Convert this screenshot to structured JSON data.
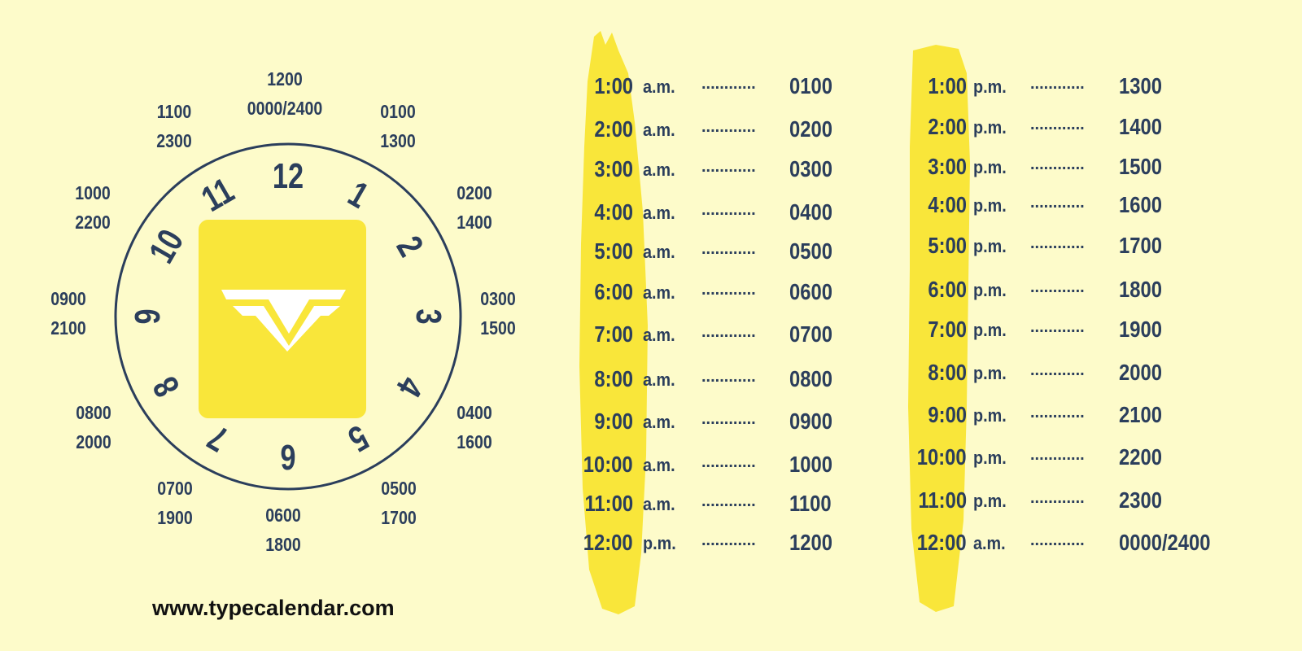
{
  "colors": {
    "background": "#fdfbca",
    "text": "#2b3e5c",
    "accent_yellow": "#f9e63a",
    "logo_white": "#ffffff"
  },
  "clock": {
    "numerals": [
      "12",
      "1",
      "2",
      "3",
      "4",
      "5",
      "6",
      "7",
      "8",
      "9",
      "10",
      "11"
    ],
    "outer_labels": [
      [
        "1200",
        "0000/2400"
      ],
      [
        "0100",
        "1300"
      ],
      [
        "0200",
        "1400"
      ],
      [
        "0300",
        "1500"
      ],
      [
        "0400",
        "1600"
      ],
      [
        "0500",
        "1700"
      ],
      [
        "0600",
        "1800"
      ],
      [
        "0700",
        "1900"
      ],
      [
        "0800",
        "2000"
      ],
      [
        "0900",
        "2100"
      ],
      [
        "1000",
        "2200"
      ],
      [
        "1100",
        "2300"
      ]
    ],
    "center_logo": "typecalendar-logo"
  },
  "am_table": [
    {
      "time": "1:00",
      "meridiem": "a.m.",
      "dots": "............",
      "military": "0100"
    },
    {
      "time": "2:00",
      "meridiem": "a.m.",
      "dots": "............",
      "military": "0200"
    },
    {
      "time": "3:00",
      "meridiem": "a.m.",
      "dots": "............",
      "military": "0300"
    },
    {
      "time": "4:00",
      "meridiem": "a.m.",
      "dots": "............",
      "military": "0400"
    },
    {
      "time": "5:00",
      "meridiem": "a.m.",
      "dots": "............",
      "military": "0500"
    },
    {
      "time": "6:00",
      "meridiem": "a.m.",
      "dots": "............",
      "military": "0600"
    },
    {
      "time": "7:00",
      "meridiem": "a.m.",
      "dots": "............",
      "military": "0700"
    },
    {
      "time": "8:00",
      "meridiem": "a.m.",
      "dots": "............",
      "military": "0800"
    },
    {
      "time": "9:00",
      "meridiem": "a.m.",
      "dots": "............",
      "military": "0900"
    },
    {
      "time": "10:00",
      "meridiem": "a.m.",
      "dots": "............",
      "military": "1000"
    },
    {
      "time": "11:00",
      "meridiem": "a.m.",
      "dots": "............",
      "military": "1100"
    },
    {
      "time": "12:00",
      "meridiem": "p.m.",
      "dots": "............",
      "military": "1200"
    }
  ],
  "pm_table": [
    {
      "time": "1:00",
      "meridiem": "p.m.",
      "dots": "............",
      "military": "1300"
    },
    {
      "time": "2:00",
      "meridiem": "p.m.",
      "dots": "............",
      "military": "1400"
    },
    {
      "time": "3:00",
      "meridiem": "p.m.",
      "dots": "............",
      "military": "1500"
    },
    {
      "time": "4:00",
      "meridiem": "p.m.",
      "dots": "............",
      "military": "1600"
    },
    {
      "time": "5:00",
      "meridiem": "p.m.",
      "dots": "............",
      "military": "1700"
    },
    {
      "time": "6:00",
      "meridiem": "p.m.",
      "dots": "............",
      "military": "1800"
    },
    {
      "time": "7:00",
      "meridiem": "p.m.",
      "dots": "............",
      "military": "1900"
    },
    {
      "time": "8:00",
      "meridiem": "p.m.",
      "dots": "............",
      "military": "2000"
    },
    {
      "time": "9:00",
      "meridiem": "p.m.",
      "dots": "............",
      "military": "2100"
    },
    {
      "time": "10:00",
      "meridiem": "p.m.",
      "dots": "............",
      "military": "2200"
    },
    {
      "time": "11:00",
      "meridiem": "p.m.",
      "dots": "............",
      "military": "2300"
    },
    {
      "time": "12:00",
      "meridiem": "a.m.",
      "dots": "............",
      "military": "0000/2400"
    }
  ],
  "footer": {
    "url": "www.typecalendar.com"
  }
}
